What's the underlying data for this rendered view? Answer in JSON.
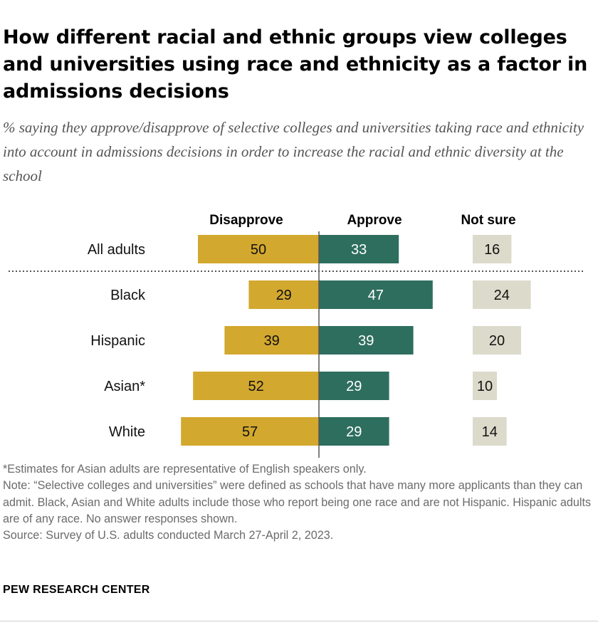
{
  "title": "How different racial and ethnic groups view colleges and universities using race and ethnicity as a factor in admissions decisions",
  "subtitle": "% saying they approve/disapprove of selective colleges and universities taking race and ethnicity into account in admissions decisions in order to increase the racial and ethnic diversity at the school",
  "notes": {
    "asterisk": "*Estimates for Asian adults are representative of English speakers only.",
    "note": "Note: “Selective colleges and universities” were defined as schools that have many more applicants than they can admit. Black, Asian and White adults include those who report being one race and are not Hispanic. Hispanic adults are of any race. No answer responses shown.",
    "source": "Source: Survey of U.S. adults conducted March 27-April 2, 2023."
  },
  "brand": "PEW RESEARCH CENTER",
  "chart_data": {
    "type": "bar",
    "orientation": "horizontal-diverging",
    "categories": [
      "All adults",
      "Black",
      "Hispanic",
      "Asian*",
      "White"
    ],
    "series": [
      {
        "name": "Disapprove",
        "values": [
          50,
          29,
          39,
          52,
          57
        ],
        "color": "#d3a82e"
      },
      {
        "name": "Approve",
        "values": [
          33,
          47,
          39,
          29,
          29
        ],
        "color": "#2e6e5f"
      },
      {
        "name": "Not sure",
        "values": [
          16,
          24,
          20,
          10,
          14
        ],
        "color": "#dcdacb"
      }
    ],
    "separator_after": "All adults",
    "grid": false,
    "data_labels": true
  }
}
